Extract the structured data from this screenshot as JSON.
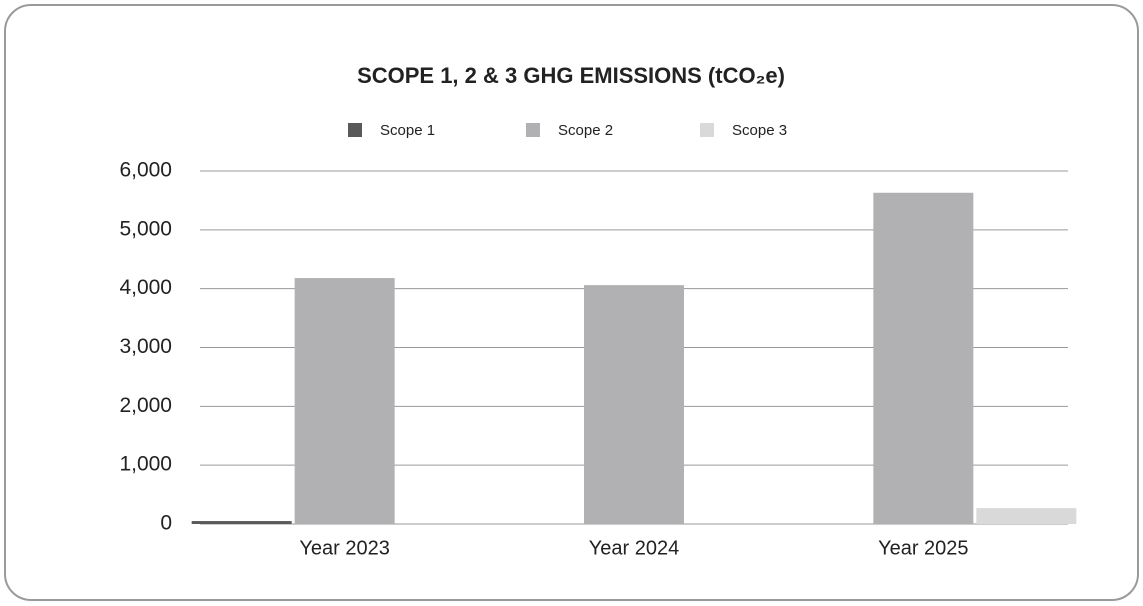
{
  "chart_data": {
    "type": "bar",
    "title": "SCOPE 1, 2 & 3 GHG EMISSIONS (tCO₂e)",
    "categories": [
      "Year 2023",
      "Year 2024",
      "Year 2025"
    ],
    "series": [
      {
        "name": "Scope 1",
        "color": "#595959",
        "values": [
          50,
          0,
          0
        ]
      },
      {
        "name": "Scope 2",
        "color": "#b1b1b3",
        "values": [
          4180,
          4060,
          5630
        ]
      },
      {
        "name": "Scope 3",
        "color": "#d9d9d9",
        "values": [
          0,
          0,
          270
        ]
      }
    ],
    "ylim": [
      0,
      6000
    ],
    "yticks": [
      0,
      {
        "value": 1000,
        "label": "1,000"
      },
      {
        "value": 2000,
        "label": "2,000"
      },
      {
        "value": 3000,
        "label": "3,000"
      },
      {
        "value": 4000,
        "label": "4,000"
      },
      {
        "value": 5000,
        "label": "5,000"
      },
      {
        "value": 6000,
        "label": "6,000"
      }
    ],
    "grid": true,
    "legend": "top"
  }
}
